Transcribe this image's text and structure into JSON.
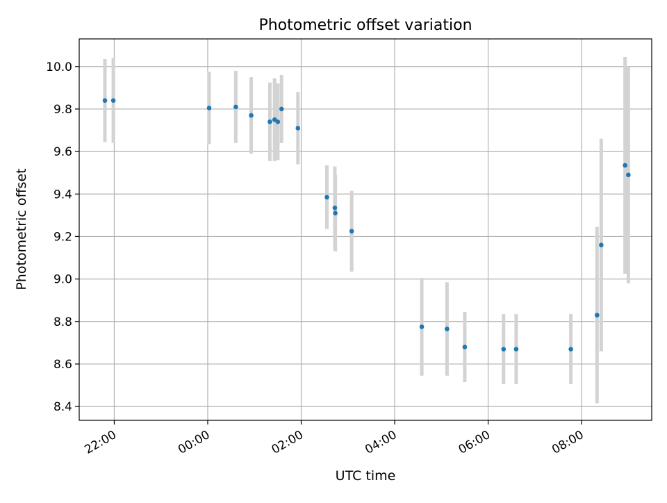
{
  "chart_data": {
    "type": "scatter",
    "title": "Photometric offset variation",
    "xlabel": "UTC time",
    "ylabel": "Photometric offset",
    "x_unit": "hours UTC (values above 24 are times after midnight)",
    "xlim": [
      21.25,
      33.5
    ],
    "ylim": [
      8.335,
      10.13
    ],
    "xticks": [
      {
        "value": 22,
        "label": "22:00"
      },
      {
        "value": 24,
        "label": "00:00"
      },
      {
        "value": 26,
        "label": "02:00"
      },
      {
        "value": 28,
        "label": "04:00"
      },
      {
        "value": 30,
        "label": "06:00"
      },
      {
        "value": 32,
        "label": "08:00"
      }
    ],
    "yticks": [
      {
        "value": 8.4,
        "label": "8.4"
      },
      {
        "value": 8.6,
        "label": "8.6"
      },
      {
        "value": 8.8,
        "label": "8.8"
      },
      {
        "value": 9.0,
        "label": "9.0"
      },
      {
        "value": 9.2,
        "label": "9.2"
      },
      {
        "value": 9.4,
        "label": "9.4"
      },
      {
        "value": 9.6,
        "label": "9.6"
      },
      {
        "value": 9.8,
        "label": "9.8"
      },
      {
        "value": 10.0,
        "label": "10.0"
      }
    ],
    "grid": true,
    "point_color": "#1f77b4",
    "errorbar_color": "#d3d3d3",
    "points": [
      {
        "x": 21.8,
        "y": 9.84,
        "err": 0.195
      },
      {
        "x": 21.98,
        "y": 9.84,
        "err": 0.2
      },
      {
        "x": 24.03,
        "y": 9.805,
        "err": 0.17
      },
      {
        "x": 24.6,
        "y": 9.81,
        "err": 0.17
      },
      {
        "x": 24.93,
        "y": 9.77,
        "err": 0.18
      },
      {
        "x": 25.33,
        "y": 9.74,
        "err": 0.185
      },
      {
        "x": 25.43,
        "y": 9.75,
        "err": 0.195
      },
      {
        "x": 25.5,
        "y": 9.74,
        "err": 0.18
      },
      {
        "x": 25.58,
        "y": 9.8,
        "err": 0.16
      },
      {
        "x": 25.93,
        "y": 9.71,
        "err": 0.17
      },
      {
        "x": 26.55,
        "y": 9.385,
        "err": 0.15
      },
      {
        "x": 26.72,
        "y": 9.335,
        "err": 0.195
      },
      {
        "x": 26.73,
        "y": 9.31,
        "err": 0.18
      },
      {
        "x": 27.08,
        "y": 9.225,
        "err": 0.19
      },
      {
        "x": 28.58,
        "y": 8.775,
        "err": 0.23
      },
      {
        "x": 29.12,
        "y": 8.765,
        "err": 0.22
      },
      {
        "x": 29.5,
        "y": 8.68,
        "err": 0.165
      },
      {
        "x": 30.33,
        "y": 8.67,
        "err": 0.165
      },
      {
        "x": 30.6,
        "y": 8.67,
        "err": 0.165
      },
      {
        "x": 31.77,
        "y": 8.67,
        "err": 0.165
      },
      {
        "x": 32.33,
        "y": 8.83,
        "err": 0.415
      },
      {
        "x": 32.42,
        "y": 9.16,
        "err": 0.5
      },
      {
        "x": 32.93,
        "y": 9.535,
        "err": 0.51
      },
      {
        "x": 33.0,
        "y": 9.49,
        "err": 0.51
      }
    ]
  }
}
